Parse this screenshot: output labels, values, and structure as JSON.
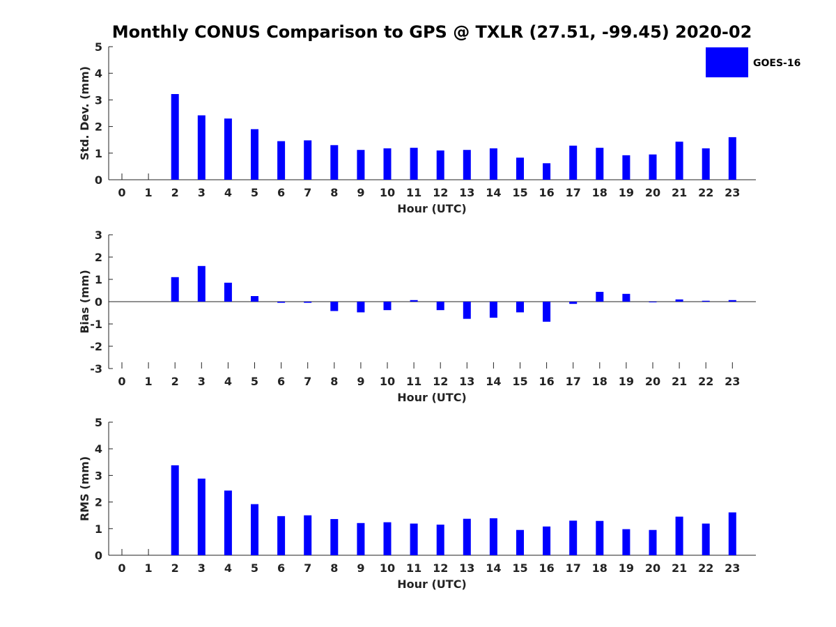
{
  "title": "Monthly CONUS Comparison to GPS @ TXLR (27.51, -99.45) 2020-02",
  "legend": {
    "label": "GOES-16",
    "color": "#0000ff",
    "placement": "top-right"
  },
  "chart_data": [
    {
      "type": "bar",
      "xlabel": "Hour (UTC)",
      "ylabel": "Std. Dev. (mm)",
      "ylim": [
        0,
        5
      ],
      "yticks": [
        0,
        1,
        2,
        3,
        4,
        5
      ],
      "categories": [
        "0",
        "1",
        "2",
        "3",
        "4",
        "5",
        "6",
        "7",
        "8",
        "9",
        "10",
        "11",
        "12",
        "13",
        "14",
        "15",
        "16",
        "17",
        "18",
        "19",
        "20",
        "21",
        "22",
        "23"
      ],
      "series": [
        {
          "name": "GOES-16",
          "values": [
            null,
            null,
            3.22,
            2.42,
            2.3,
            1.9,
            1.45,
            1.48,
            1.3,
            1.12,
            1.18,
            1.2,
            1.1,
            1.12,
            1.18,
            0.83,
            0.62,
            1.28,
            1.2,
            0.92,
            0.95,
            1.43,
            1.18,
            1.6
          ]
        }
      ],
      "grid": false
    },
    {
      "type": "bar",
      "xlabel": "Hour (UTC)",
      "ylabel": "Bias (mm)",
      "ylim": [
        -3,
        3
      ],
      "yticks": [
        -3,
        -2,
        -1,
        0,
        1,
        2,
        3
      ],
      "categories": [
        "0",
        "1",
        "2",
        "3",
        "4",
        "5",
        "6",
        "7",
        "8",
        "9",
        "10",
        "11",
        "12",
        "13",
        "14",
        "15",
        "16",
        "17",
        "18",
        "19",
        "20",
        "21",
        "22",
        "23"
      ],
      "series": [
        {
          "name": "GOES-16",
          "values": [
            null,
            null,
            1.1,
            1.6,
            0.85,
            0.25,
            -0.05,
            -0.05,
            -0.42,
            -0.48,
            -0.38,
            0.07,
            -0.38,
            -0.77,
            -0.72,
            -0.48,
            -0.9,
            -0.1,
            0.44,
            0.35,
            -0.02,
            0.1,
            0.04,
            0.07
          ]
        }
      ],
      "grid": false
    },
    {
      "type": "bar",
      "xlabel": "Hour (UTC)",
      "ylabel": "RMS (mm)",
      "ylim": [
        0,
        5
      ],
      "yticks": [
        0,
        1,
        2,
        3,
        4,
        5
      ],
      "categories": [
        "0",
        "1",
        "2",
        "3",
        "4",
        "5",
        "6",
        "7",
        "8",
        "9",
        "10",
        "11",
        "12",
        "13",
        "14",
        "15",
        "16",
        "17",
        "18",
        "19",
        "20",
        "21",
        "22",
        "23"
      ],
      "series": [
        {
          "name": "GOES-16",
          "values": [
            null,
            null,
            3.38,
            2.88,
            2.43,
            1.92,
            1.47,
            1.5,
            1.36,
            1.21,
            1.24,
            1.19,
            1.15,
            1.37,
            1.39,
            0.95,
            1.08,
            1.3,
            1.29,
            0.98,
            0.95,
            1.45,
            1.19,
            1.61
          ]
        }
      ],
      "grid": false
    }
  ]
}
